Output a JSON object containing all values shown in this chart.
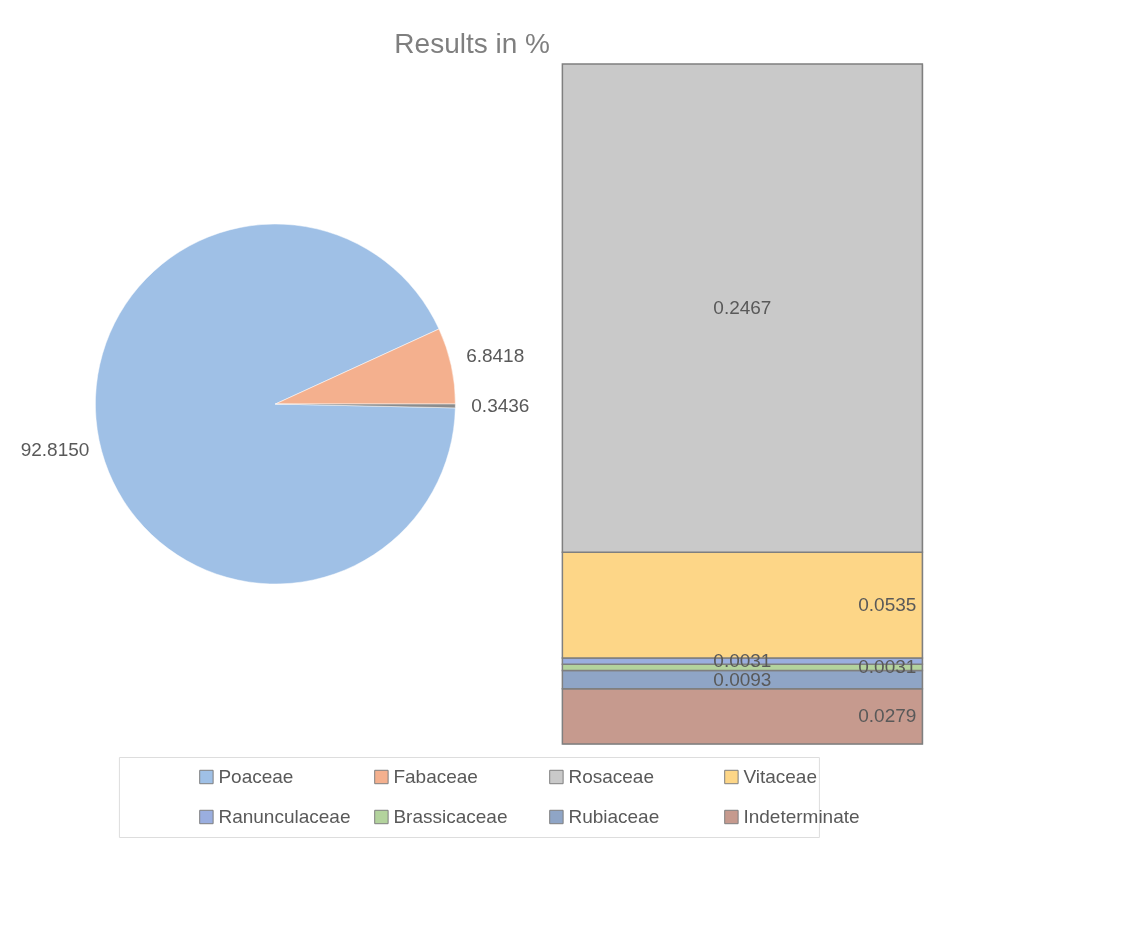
{
  "chart_data": [
    {
      "type": "pie",
      "title": "Results in %",
      "categories": [
        "Poaceae",
        "Fabaceae",
        null
      ],
      "values": [
        92.815,
        6.8418,
        0.3436
      ],
      "colors": [
        "#9fc0e6",
        "#f4b08e",
        "#8c8c8c"
      ],
      "value_labels": [
        "92.8150",
        "6.8418",
        "0.3436"
      ],
      "legend": "bottom"
    },
    {
      "type": "bar",
      "stacked": true,
      "categories": [
        null
      ],
      "legend": "bottom",
      "data_labels": true,
      "tick_labels": false,
      "series": [
        {
          "name": "Indeterminate",
          "color": "#c69a8e",
          "values": [
            0.0279
          ]
        },
        {
          "name": "Rubiaceae",
          "color": "#8fa5c6",
          "values": [
            0.0093
          ]
        },
        {
          "name": "Brassicaceae",
          "color": "#b3d39d",
          "values": [
            0.0031
          ]
        },
        {
          "name": "Ranunculaceae",
          "color": "#9aaedf",
          "values": [
            0.0031
          ]
        },
        {
          "name": "Vitaceae",
          "color": "#fdd687",
          "values": [
            0.0535
          ]
        },
        {
          "name": "Rosaceae",
          "color": "#c9c9c9",
          "values": [
            0.2467
          ]
        }
      ]
    }
  ]
}
